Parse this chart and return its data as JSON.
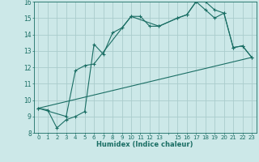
{
  "bg_color": "#cce8e8",
  "grid_color": "#aacccc",
  "line_color": "#1a6e64",
  "xlabel": "Humidex (Indice chaleur)",
  "xlim": [
    -0.5,
    23.5
  ],
  "ylim": [
    8,
    16
  ],
  "yticks": [
    8,
    9,
    10,
    11,
    12,
    13,
    14,
    15,
    16
  ],
  "xtick_positions": [
    0,
    1,
    2,
    3,
    4,
    5,
    6,
    7,
    8,
    9,
    10,
    11,
    12,
    13,
    14,
    15,
    16,
    17,
    18,
    19,
    20,
    21,
    22,
    23
  ],
  "xtick_labels": [
    "0",
    "1",
    "2",
    "3",
    "4",
    "5",
    "6",
    "7",
    "8",
    "9",
    "10",
    "11",
    "12",
    "13",
    "",
    "15",
    "16",
    "17",
    "18",
    "19",
    "20",
    "21",
    "22",
    "23"
  ],
  "line1_x": [
    0,
    1,
    2,
    3,
    4,
    5,
    6,
    7,
    8,
    9,
    10,
    11,
    12,
    13,
    15,
    16,
    17,
    18,
    19,
    20,
    21,
    22,
    23
  ],
  "line1_y": [
    9.5,
    9.4,
    8.3,
    8.8,
    9.0,
    9.3,
    13.4,
    12.8,
    14.1,
    14.4,
    15.1,
    15.1,
    14.5,
    14.5,
    15.0,
    15.2,
    16.0,
    16.0,
    15.5,
    15.3,
    13.2,
    13.3,
    12.6
  ],
  "line2_x": [
    0,
    3,
    4,
    5,
    6,
    10,
    13,
    15,
    16,
    17,
    18,
    19,
    20,
    21,
    22,
    23
  ],
  "line2_y": [
    9.5,
    9.0,
    11.8,
    12.1,
    12.2,
    15.1,
    14.5,
    15.0,
    15.2,
    16.0,
    15.5,
    15.0,
    15.3,
    13.2,
    13.3,
    12.6
  ],
  "line3_x": [
    0,
    23
  ],
  "line3_y": [
    9.5,
    12.6
  ]
}
